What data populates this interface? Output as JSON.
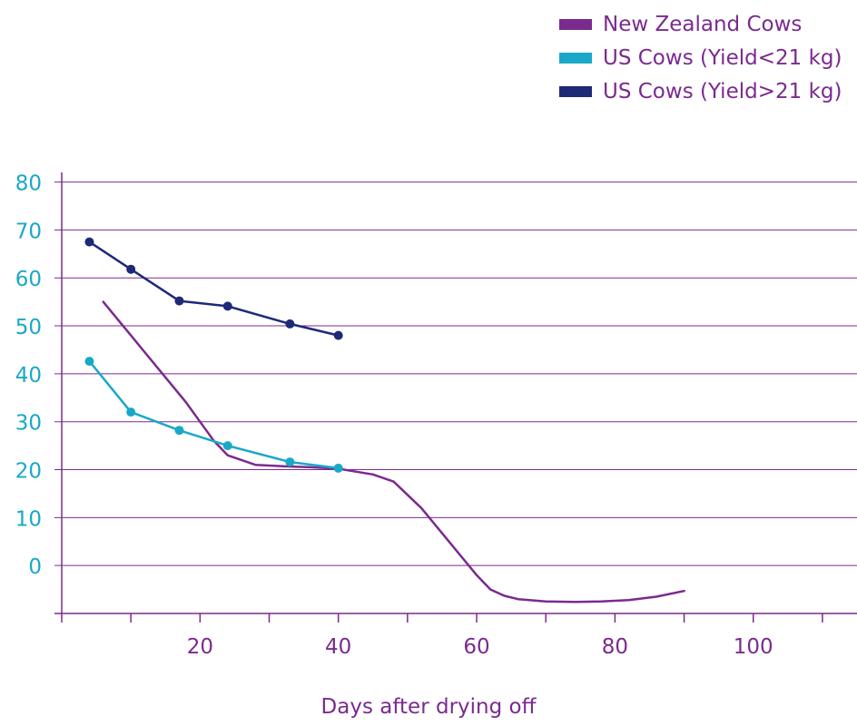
{
  "chart_data": {
    "type": "line",
    "title": "",
    "xlabel": "Days after drying off",
    "ylabel": "",
    "xlim": [
      0,
      115
    ],
    "ylim": [
      -10,
      82
    ],
    "x_ticks": [
      20,
      40,
      60,
      80,
      100
    ],
    "y_ticks": [
      0,
      10,
      20,
      30,
      40,
      50,
      60,
      70,
      80
    ],
    "grid": "horizontal",
    "legend_position": "top-right",
    "colors": {
      "grid": "#7b2a8e",
      "axis": "#7b2a8e",
      "y_tick_text": "#1aa8c8",
      "x_tick_text": "#7b2a8e"
    },
    "series": [
      {
        "name": "New Zealand Cows",
        "color": "#7b2a8e",
        "markers": false,
        "x": [
          6,
          10,
          14,
          18,
          20,
          22,
          24,
          28,
          32,
          36,
          40,
          45,
          48,
          52,
          56,
          60,
          62,
          64,
          66,
          70,
          74,
          78,
          82,
          86,
          90
        ],
        "y": [
          55,
          48,
          41,
          34,
          30,
          26,
          23,
          21,
          20.7,
          20.5,
          20.2,
          19,
          17.5,
          12,
          5,
          -2,
          -5,
          -6.3,
          -7,
          -7.5,
          -7.6,
          -7.5,
          -7.2,
          -6.5,
          -5.3
        ]
      },
      {
        "name": "US Cows (Yield<21 kg)",
        "color": "#1aa8c8",
        "markers": true,
        "x": [
          4,
          10,
          17,
          24,
          33,
          40
        ],
        "y": [
          42.6,
          32,
          28.2,
          25,
          21.6,
          20.3
        ]
      },
      {
        "name": "US Cows (Yield>21 kg)",
        "color": "#1d2a78",
        "markers": true,
        "x": [
          4,
          10,
          17,
          24,
          33,
          40
        ],
        "y": [
          67.5,
          61.8,
          55.2,
          54.1,
          50.4,
          48
        ]
      }
    ]
  }
}
